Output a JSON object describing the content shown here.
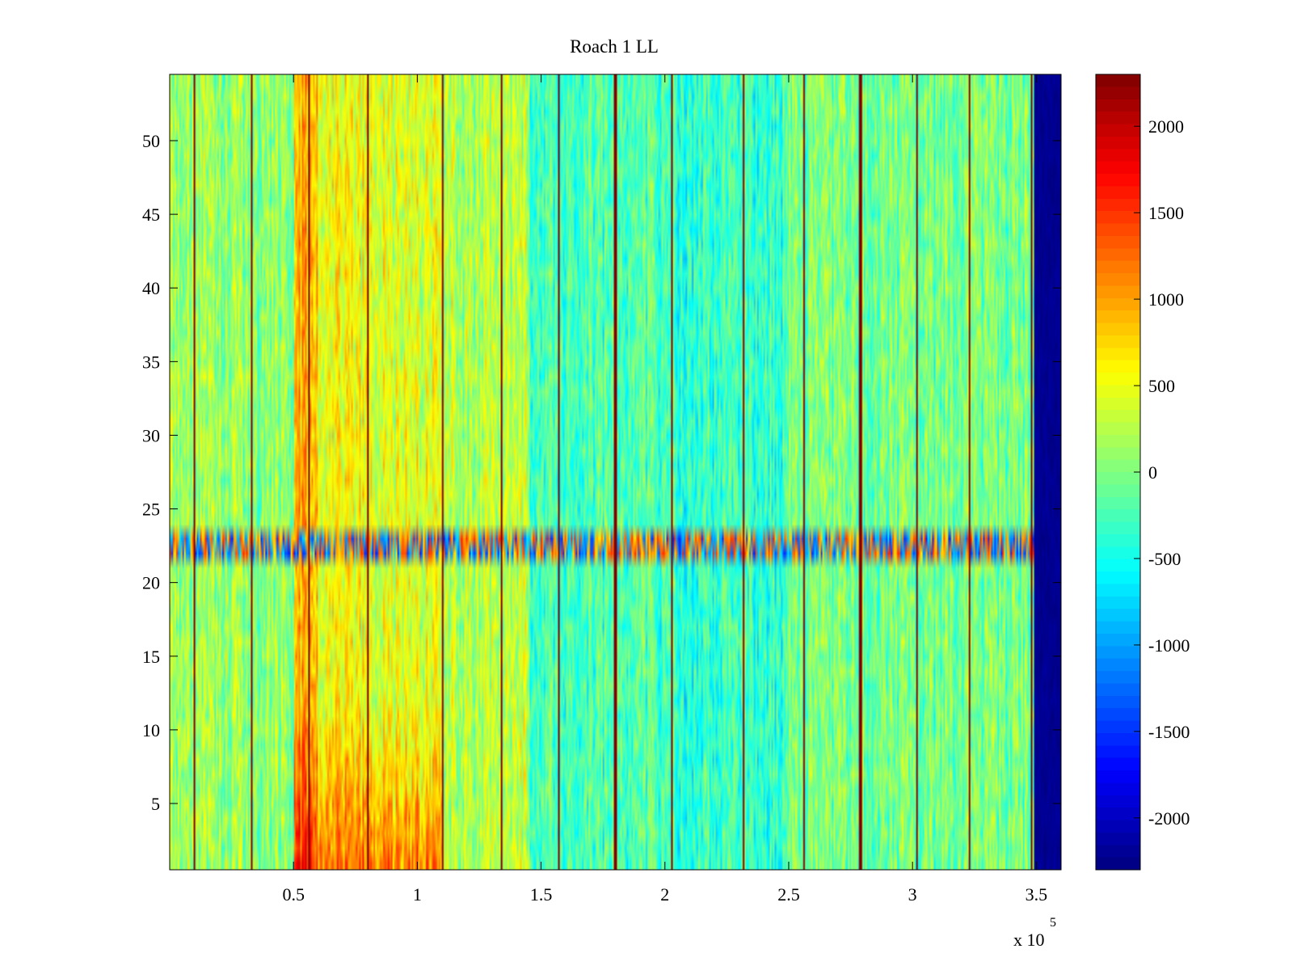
{
  "chart_data": {
    "type": "heatmap",
    "title": "Roach 1 LL",
    "xlabel": "",
    "ylabel": "",
    "colormap": "jet",
    "x_exponent_label": {
      "base": "x 10",
      "exponent": "5"
    },
    "x_range": [
      0,
      360000
    ],
    "y_range": [
      0.5,
      54.5
    ],
    "rows": 54,
    "x_ticks": [
      {
        "value": 50000,
        "label": "0.5"
      },
      {
        "value": 100000,
        "label": "1"
      },
      {
        "value": 150000,
        "label": "1.5"
      },
      {
        "value": 200000,
        "label": "2"
      },
      {
        "value": 250000,
        "label": "2.5"
      },
      {
        "value": 300000,
        "label": "3"
      },
      {
        "value": 350000,
        "label": "3.5"
      }
    ],
    "y_ticks": [
      {
        "value": 5,
        "label": "5"
      },
      {
        "value": 10,
        "label": "10"
      },
      {
        "value": 15,
        "label": "15"
      },
      {
        "value": 20,
        "label": "20"
      },
      {
        "value": 25,
        "label": "25"
      },
      {
        "value": 30,
        "label": "30"
      },
      {
        "value": 35,
        "label": "35"
      },
      {
        "value": 40,
        "label": "40"
      },
      {
        "value": 45,
        "label": "45"
      },
      {
        "value": 50,
        "label": "50"
      }
    ],
    "colorbar": {
      "range": [
        -2300,
        2300
      ],
      "ticks": [
        {
          "value": 2000,
          "label": "2000"
        },
        {
          "value": 1500,
          "label": "1500"
        },
        {
          "value": 1000,
          "label": "1000"
        },
        {
          "value": 500,
          "label": "500"
        },
        {
          "value": 0,
          "label": "0"
        },
        {
          "value": -500,
          "label": "-500"
        },
        {
          "value": -1000,
          "label": "-1000"
        },
        {
          "value": -1500,
          "label": "-1500"
        },
        {
          "value": -2000,
          "label": "-2000"
        }
      ]
    },
    "vertical_high_lines_x": [
      10000,
      33000,
      56500,
      80000,
      110000,
      134000,
      157000,
      180000,
      203000,
      232000,
      256000,
      279000,
      302000,
      323000,
      348000
    ],
    "baseline_value": 0,
    "column_offsets": [
      {
        "x0": 0,
        "x1": 50000,
        "offset": 100
      },
      {
        "x0": 50000,
        "x1": 60000,
        "offset": 900
      },
      {
        "x0": 60000,
        "x1": 80000,
        "offset": 500
      },
      {
        "x0": 80000,
        "x1": 110000,
        "offset": 450
      },
      {
        "x0": 110000,
        "x1": 145000,
        "offset": 250
      },
      {
        "x0": 145000,
        "x1": 205000,
        "offset": -250
      },
      {
        "x0": 205000,
        "x1": 250000,
        "offset": -350
      },
      {
        "x0": 250000,
        "x1": 349000,
        "offset": -50
      },
      {
        "x0": 349000,
        "x1": 360000,
        "offset": -2300
      }
    ],
    "row_band": {
      "rows": [
        22,
        23
      ],
      "amplitude": 1600
    }
  }
}
